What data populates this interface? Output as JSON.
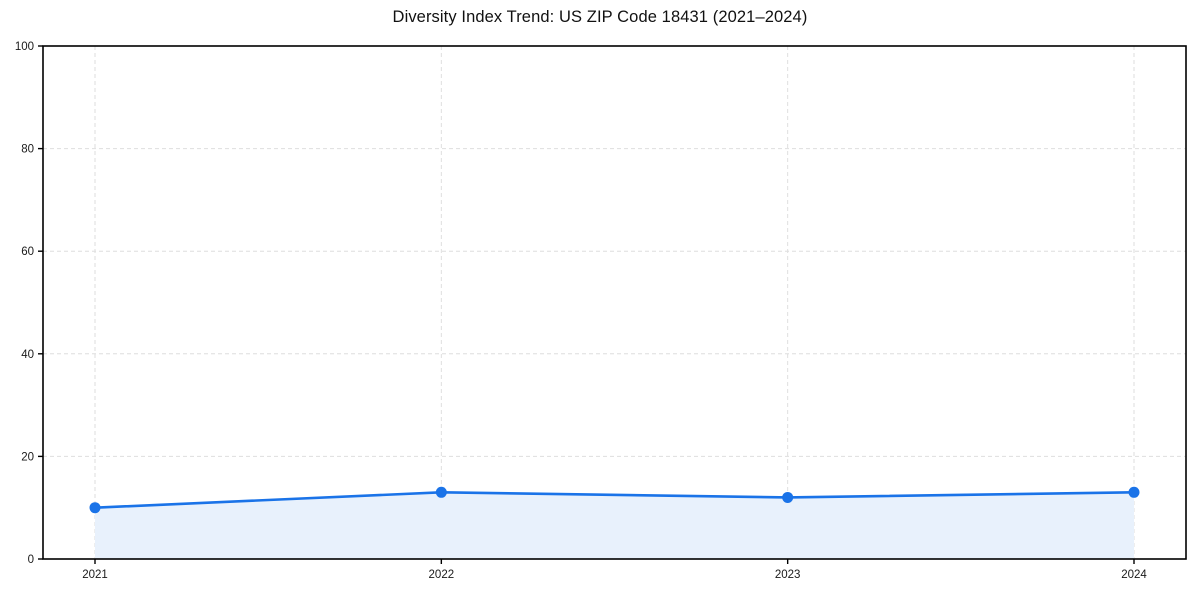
{
  "chart_data": {
    "type": "line",
    "title": "Diversity Index Trend: US ZIP Code 18431 (2021–2024)",
    "categories": [
      "2021",
      "2022",
      "2023",
      "2024"
    ],
    "series": [
      {
        "name": "Diversity Index",
        "values": [
          10,
          13,
          12,
          13
        ]
      }
    ],
    "xlabel": "",
    "ylabel": "",
    "ylim": [
      0,
      100
    ],
    "yticks": [
      0,
      20,
      40,
      60,
      80,
      100
    ],
    "grid": true,
    "grid_style": "dashed",
    "legend": "none",
    "area_fill": true,
    "colors": {
      "line": "#1a73e8",
      "marker": "#1a73e8",
      "fill": "#e8f1fc",
      "grid": "#dedede",
      "axis": "#000000",
      "tick_label": "#1a1a1a",
      "title": "#111111",
      "background": "#ffffff"
    }
  }
}
